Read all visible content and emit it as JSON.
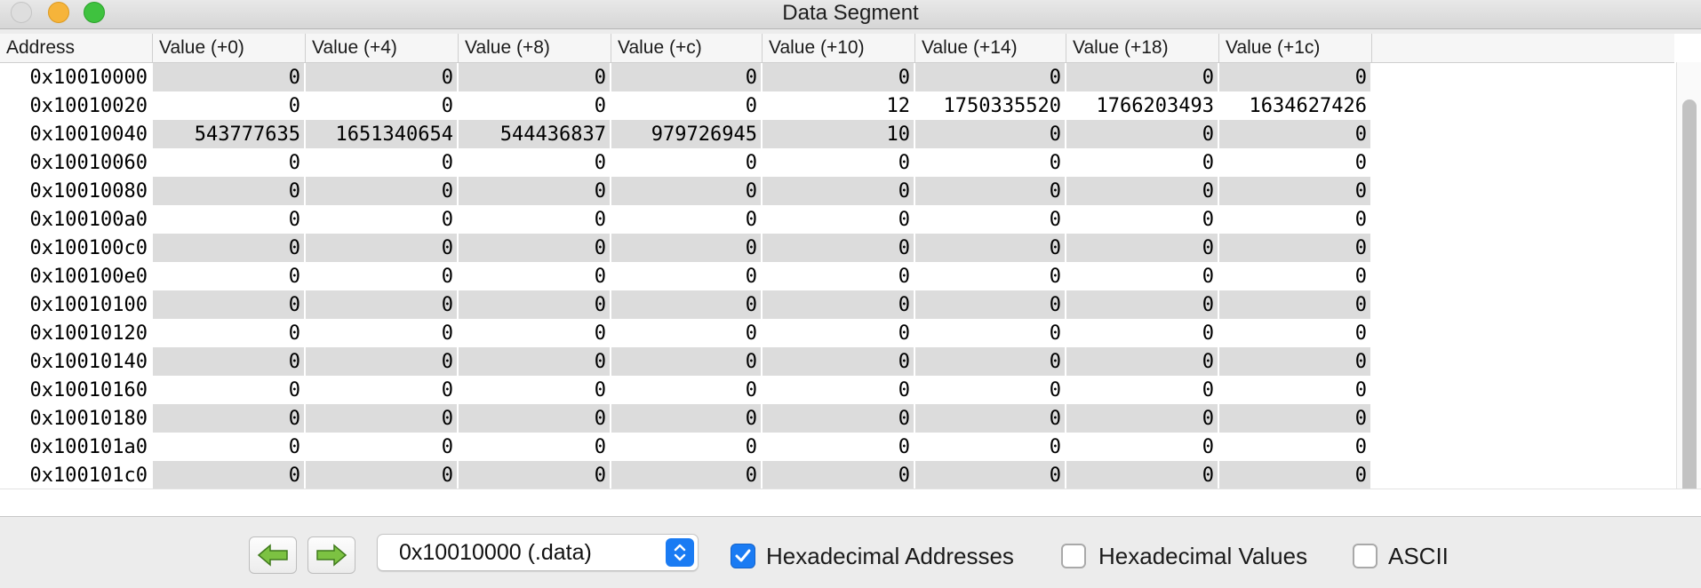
{
  "window": {
    "title": "Data Segment"
  },
  "table": {
    "columns": [
      "Address",
      "Value (+0)",
      "Value (+4)",
      "Value (+8)",
      "Value (+c)",
      "Value (+10)",
      "Value (+14)",
      "Value (+18)",
      "Value (+1c)"
    ],
    "rows": [
      {
        "address": "0x10010000",
        "values": [
          "0",
          "0",
          "0",
          "0",
          "0",
          "0",
          "0",
          "0"
        ]
      },
      {
        "address": "0x10010020",
        "values": [
          "0",
          "0",
          "0",
          "0",
          "12",
          "1750335520",
          "1766203493",
          "1634627426"
        ]
      },
      {
        "address": "0x10010040",
        "values": [
          "543777635",
          "1651340654",
          "544436837",
          "979726945",
          "10",
          "0",
          "0",
          "0"
        ]
      },
      {
        "address": "0x10010060",
        "values": [
          "0",
          "0",
          "0",
          "0",
          "0",
          "0",
          "0",
          "0"
        ]
      },
      {
        "address": "0x10010080",
        "values": [
          "0",
          "0",
          "0",
          "0",
          "0",
          "0",
          "0",
          "0"
        ]
      },
      {
        "address": "0x100100a0",
        "values": [
          "0",
          "0",
          "0",
          "0",
          "0",
          "0",
          "0",
          "0"
        ]
      },
      {
        "address": "0x100100c0",
        "values": [
          "0",
          "0",
          "0",
          "0",
          "0",
          "0",
          "0",
          "0"
        ]
      },
      {
        "address": "0x100100e0",
        "values": [
          "0",
          "0",
          "0",
          "0",
          "0",
          "0",
          "0",
          "0"
        ]
      },
      {
        "address": "0x10010100",
        "values": [
          "0",
          "0",
          "0",
          "0",
          "0",
          "0",
          "0",
          "0"
        ]
      },
      {
        "address": "0x10010120",
        "values": [
          "0",
          "0",
          "0",
          "0",
          "0",
          "0",
          "0",
          "0"
        ]
      },
      {
        "address": "0x10010140",
        "values": [
          "0",
          "0",
          "0",
          "0",
          "0",
          "0",
          "0",
          "0"
        ]
      },
      {
        "address": "0x10010160",
        "values": [
          "0",
          "0",
          "0",
          "0",
          "0",
          "0",
          "0",
          "0"
        ]
      },
      {
        "address": "0x10010180",
        "values": [
          "0",
          "0",
          "0",
          "0",
          "0",
          "0",
          "0",
          "0"
        ]
      },
      {
        "address": "0x100101a0",
        "values": [
          "0",
          "0",
          "0",
          "0",
          "0",
          "0",
          "0",
          "0"
        ]
      },
      {
        "address": "0x100101c0",
        "values": [
          "0",
          "0",
          "0",
          "0",
          "0",
          "0",
          "0",
          "0"
        ]
      }
    ]
  },
  "toolbar": {
    "prev_icon": "left-arrow-icon",
    "next_icon": "right-arrow-icon",
    "segment_selected": "0x10010000 (.data)",
    "hex_addresses": {
      "label": "Hexadecimal Addresses",
      "checked": true
    },
    "hex_values": {
      "label": "Hexadecimal Values",
      "checked": false
    },
    "ascii": {
      "label": "ASCII",
      "checked": false
    }
  },
  "colors": {
    "accent": "#1a7bf3",
    "row_stripe": "#dcdcdc",
    "arrow_green": "#7cc242"
  }
}
